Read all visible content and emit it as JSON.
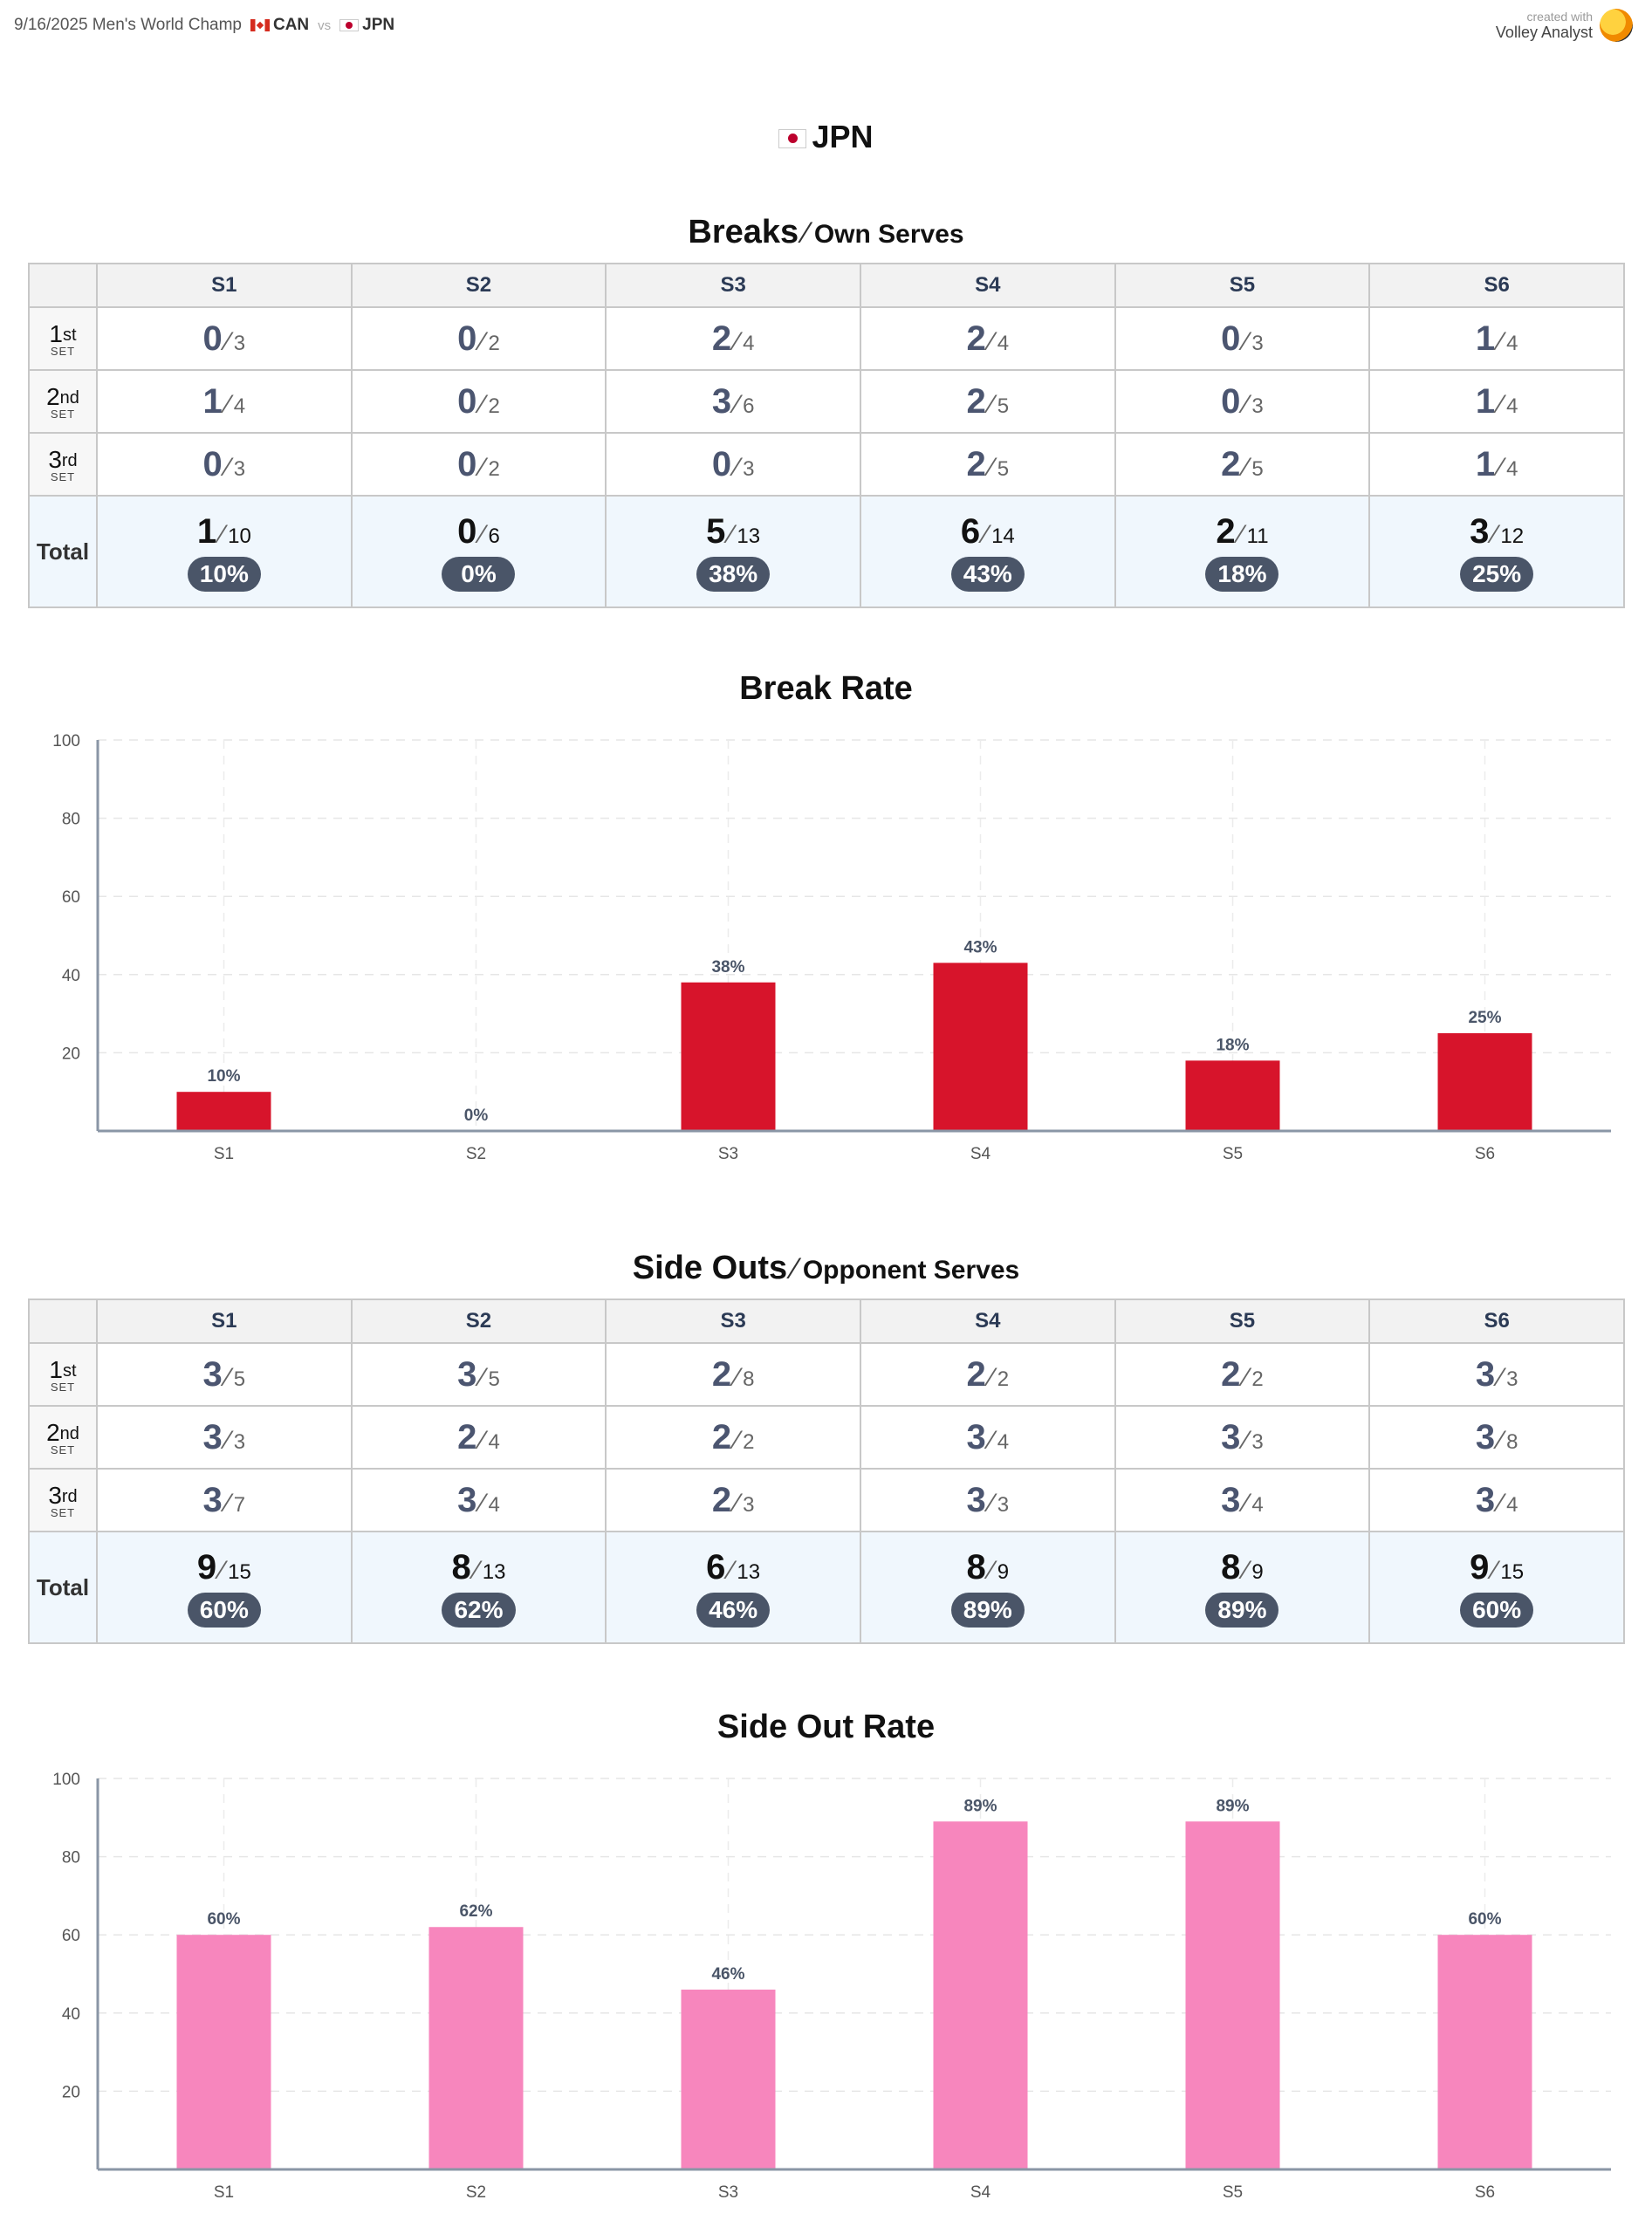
{
  "header": {
    "match": "9/16/2025 Men's World Champ",
    "team_a": "CAN",
    "vs": "vs",
    "team_b": "JPN",
    "created_with": "created with",
    "brand": "Volley Analyst"
  },
  "team": "JPN",
  "breaks": {
    "title": "Breaks",
    "subtitle": "Own Serves",
    "columns": [
      "S1",
      "S2",
      "S3",
      "S4",
      "S5",
      "S6"
    ],
    "rows": [
      {
        "ord": "1",
        "suffix": "st",
        "set": "SET",
        "cells": [
          [
            0,
            3
          ],
          [
            0,
            2
          ],
          [
            2,
            4
          ],
          [
            2,
            4
          ],
          [
            0,
            3
          ],
          [
            1,
            4
          ]
        ]
      },
      {
        "ord": "2",
        "suffix": "nd",
        "set": "SET",
        "cells": [
          [
            1,
            4
          ],
          [
            0,
            2
          ],
          [
            3,
            6
          ],
          [
            2,
            5
          ],
          [
            0,
            3
          ],
          [
            1,
            4
          ]
        ]
      },
      {
        "ord": "3",
        "suffix": "rd",
        "set": "SET",
        "cells": [
          [
            0,
            3
          ],
          [
            0,
            2
          ],
          [
            0,
            3
          ],
          [
            2,
            5
          ],
          [
            2,
            5
          ],
          [
            1,
            4
          ]
        ]
      }
    ],
    "total_label": "Total",
    "totals": [
      [
        1,
        10
      ],
      [
        0,
        6
      ],
      [
        5,
        13
      ],
      [
        6,
        14
      ],
      [
        2,
        11
      ],
      [
        3,
        12
      ]
    ],
    "pct": [
      "10%",
      "0%",
      "38%",
      "43%",
      "18%",
      "25%"
    ]
  },
  "side_outs": {
    "title": "Side Outs",
    "subtitle": "Opponent Serves",
    "columns": [
      "S1",
      "S2",
      "S3",
      "S4",
      "S5",
      "S6"
    ],
    "rows": [
      {
        "ord": "1",
        "suffix": "st",
        "set": "SET",
        "cells": [
          [
            3,
            5
          ],
          [
            3,
            5
          ],
          [
            2,
            8
          ],
          [
            2,
            2
          ],
          [
            2,
            2
          ],
          [
            3,
            3
          ]
        ]
      },
      {
        "ord": "2",
        "suffix": "nd",
        "set": "SET",
        "cells": [
          [
            3,
            3
          ],
          [
            2,
            4
          ],
          [
            2,
            2
          ],
          [
            3,
            4
          ],
          [
            3,
            3
          ],
          [
            3,
            8
          ]
        ]
      },
      {
        "ord": "3",
        "suffix": "rd",
        "set": "SET",
        "cells": [
          [
            3,
            7
          ],
          [
            3,
            4
          ],
          [
            2,
            3
          ],
          [
            3,
            3
          ],
          [
            3,
            4
          ],
          [
            3,
            4
          ]
        ]
      }
    ],
    "total_label": "Total",
    "totals": [
      [
        9,
        15
      ],
      [
        8,
        13
      ],
      [
        6,
        13
      ],
      [
        8,
        9
      ],
      [
        8,
        9
      ],
      [
        9,
        15
      ]
    ],
    "pct": [
      "60%",
      "62%",
      "46%",
      "89%",
      "89%",
      "60%"
    ]
  },
  "chart_data": [
    {
      "type": "bar",
      "title": "Break Rate",
      "categories": [
        "S1",
        "S2",
        "S3",
        "S4",
        "S5",
        "S6"
      ],
      "values": [
        10,
        0,
        38,
        43,
        18,
        25
      ],
      "labels": [
        "10%",
        "0%",
        "38%",
        "43%",
        "18%",
        "25%"
      ],
      "ylim": [
        0,
        100
      ],
      "yticks": [
        20,
        40,
        60,
        80,
        100
      ],
      "color": "#d7142b",
      "grid": true
    },
    {
      "type": "bar",
      "title": "Side Out Rate",
      "categories": [
        "S1",
        "S2",
        "S3",
        "S4",
        "S5",
        "S6"
      ],
      "values": [
        60,
        62,
        46,
        89,
        89,
        60
      ],
      "labels": [
        "60%",
        "62%",
        "46%",
        "89%",
        "89%",
        "60%"
      ],
      "ylim": [
        0,
        100
      ],
      "yticks": [
        20,
        40,
        60,
        80,
        100
      ],
      "color": "#f786bd",
      "grid": true
    }
  ]
}
